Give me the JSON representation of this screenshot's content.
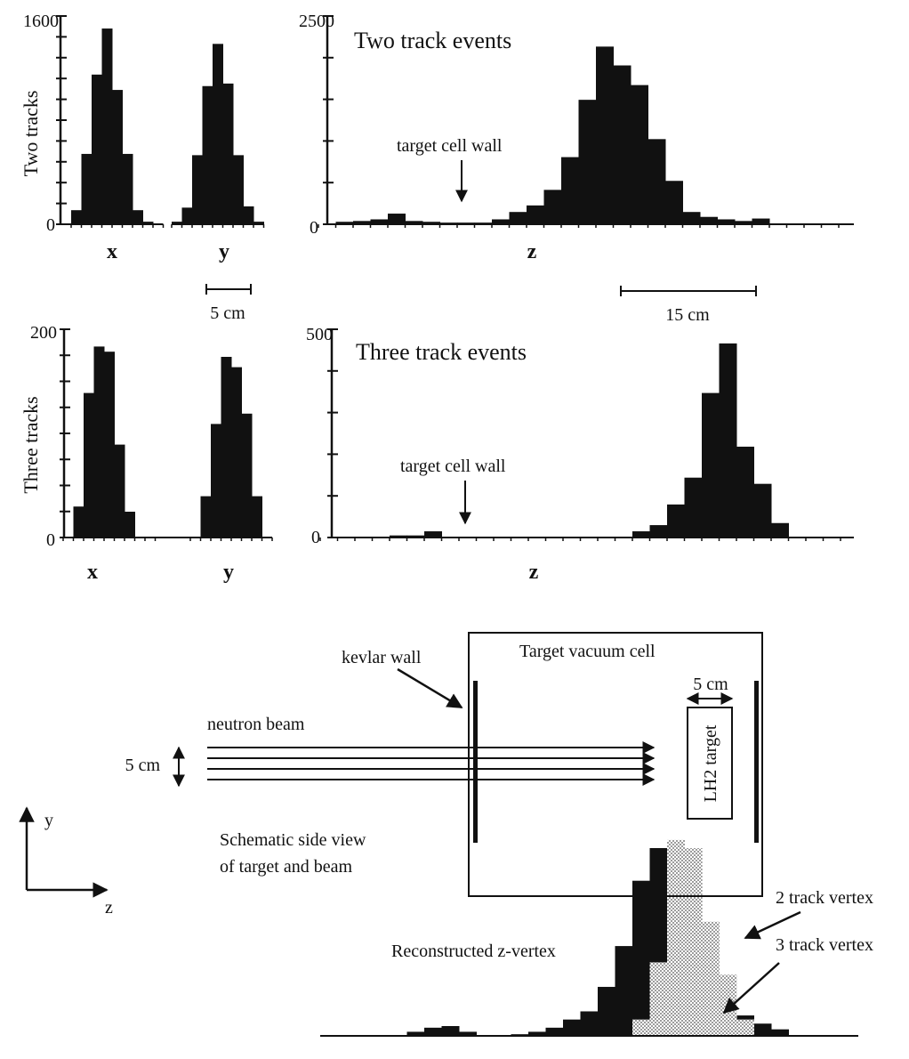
{
  "colors": {
    "ink": "#111111",
    "stipple": "#cfcfcf",
    "paper": "#ffffff"
  },
  "chart_data": [
    {
      "id": "two_x",
      "type": "bar",
      "xlabel": "x",
      "ylabel": "Two tracks",
      "ylim": [
        0,
        1600
      ],
      "ytick_labels": [
        "0",
        "1600"
      ],
      "categories": [
        1,
        2,
        3,
        4,
        5,
        6,
        7,
        8,
        9
      ],
      "values": [
        110,
        550,
        1170,
        1530,
        1050,
        550,
        110,
        20,
        0
      ]
    },
    {
      "id": "two_y",
      "type": "bar",
      "xlabel": "y",
      "ylim": [
        0,
        1600
      ],
      "categories": [
        1,
        2,
        3,
        4,
        5,
        6,
        7,
        8,
        9
      ],
      "values": [
        20,
        130,
        540,
        1080,
        1410,
        1100,
        540,
        140,
        20
      ]
    },
    {
      "id": "two_z",
      "type": "bar",
      "xlabel": "z",
      "title": "Two track events",
      "ylim": [
        0,
        2500
      ],
      "ytick_labels": [
        "0",
        "2500"
      ],
      "scale_bar": "15 cm",
      "annotation": "target cell wall",
      "categories": [
        1,
        2,
        3,
        4,
        5,
        6,
        7,
        8,
        9,
        10,
        11,
        12,
        13,
        14,
        15,
        16,
        17,
        18,
        19,
        20,
        21,
        22,
        23,
        24,
        25,
        26,
        27,
        28,
        29,
        30
      ],
      "values": [
        0,
        30,
        40,
        60,
        130,
        40,
        30,
        20,
        20,
        20,
        60,
        150,
        230,
        420,
        820,
        1520,
        2170,
        1940,
        1700,
        1040,
        530,
        150,
        90,
        60,
        40,
        70,
        0,
        0,
        0,
        0
      ]
    },
    {
      "id": "three_x",
      "type": "bar",
      "xlabel": "x",
      "ylabel": "Three tracks",
      "ylim": [
        0,
        200
      ],
      "ytick_labels": [
        "0",
        "200"
      ],
      "scale_bar": "5 cm",
      "categories": [
        1,
        2,
        3,
        4,
        5,
        6,
        7,
        8,
        9
      ],
      "values": [
        0,
        30,
        140,
        185,
        180,
        90,
        25,
        0,
        0
      ]
    },
    {
      "id": "three_y",
      "type": "bar",
      "xlabel": "y",
      "ylim": [
        0,
        200
      ],
      "categories": [
        1,
        2,
        3,
        4,
        5,
        6,
        7,
        8
      ],
      "values": [
        0,
        40,
        110,
        175,
        165,
        120,
        40,
        0
      ]
    },
    {
      "id": "three_z",
      "type": "bar",
      "xlabel": "z",
      "title": "Three track events",
      "ylim": [
        0,
        500
      ],
      "ytick_labels": [
        "0",
        "500"
      ],
      "annotation": "target cell wall",
      "categories": [
        1,
        2,
        3,
        4,
        5,
        6,
        7,
        8,
        9,
        10,
        11,
        12,
        13,
        14,
        15,
        16,
        17,
        18,
        19,
        20,
        21,
        22,
        23,
        24,
        25,
        26,
        27,
        28,
        29,
        30
      ],
      "values": [
        0,
        0,
        0,
        0,
        5,
        5,
        15,
        0,
        0,
        0,
        0,
        0,
        0,
        0,
        0,
        0,
        0,
        0,
        15,
        30,
        80,
        145,
        350,
        470,
        220,
        130,
        35,
        0,
        0,
        0
      ]
    },
    {
      "id": "reco_z",
      "type": "bar",
      "title": "Reconstructed z-vertex",
      "series": [
        {
          "name": "2 track vertex",
          "values": [
            0,
            0,
            0,
            0,
            0,
            5,
            10,
            12,
            5,
            0,
            0,
            2,
            5,
            10,
            20,
            30,
            60,
            110,
            190,
            230,
            220,
            175,
            120,
            70,
            25,
            15,
            8,
            0,
            0,
            0
          ]
        },
        {
          "name": "3 track vertex",
          "values": [
            0,
            0,
            0,
            0,
            0,
            0,
            0,
            0,
            0,
            0,
            0,
            0,
            0,
            0,
            0,
            0,
            0,
            0,
            20,
            90,
            240,
            230,
            140,
            75,
            20,
            0,
            0,
            0,
            0,
            0
          ]
        }
      ]
    }
  ],
  "schematic": {
    "box_title": "Target vacuum cell",
    "kevlar_label": "kevlar wall",
    "beam_label": "neutron beam",
    "beam_size_label": "5 cm",
    "target_size_label": "5 cm",
    "target_label": "LH2 target",
    "caption_line1": "Schematic side view",
    "caption_line2": "of target and beam",
    "axis_y": "y",
    "axis_z": "z"
  }
}
